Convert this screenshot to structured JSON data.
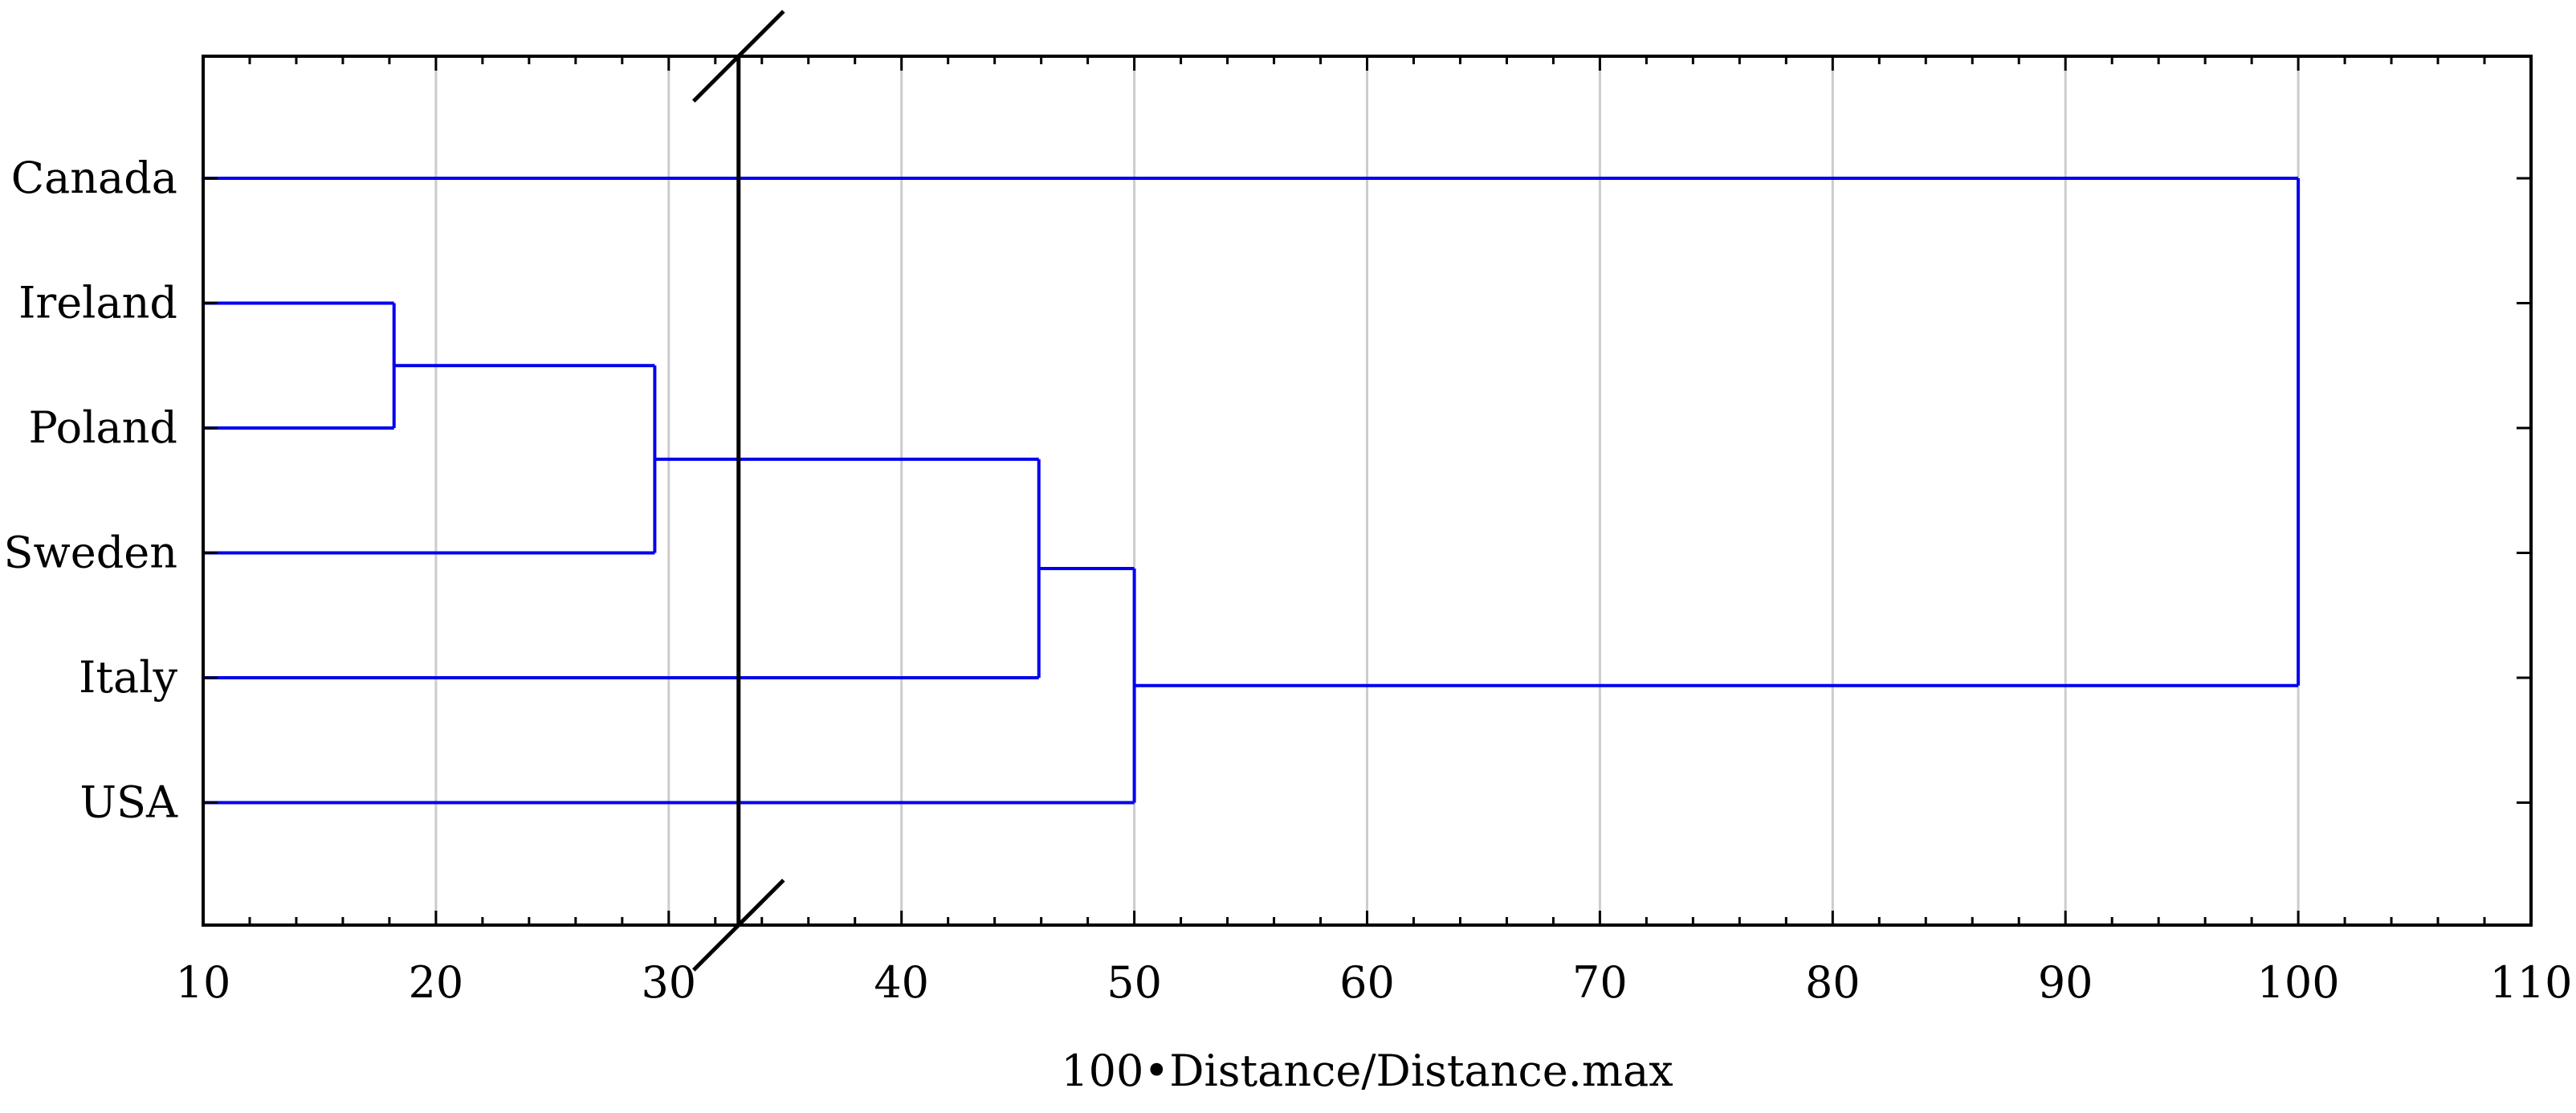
{
  "chart_data": {
    "type": "dendrogram",
    "xlabel": "100•Distance/Distance.max",
    "xlim": [
      10,
      110
    ],
    "xticks": [
      "10",
      "20",
      "30",
      "40",
      "50",
      "60",
      "70",
      "80",
      "90",
      "100",
      "110"
    ],
    "leaves": [
      "Canada",
      "Ireland",
      "Poland",
      "Sweden",
      "Italy",
      "USA"
    ],
    "merges": [
      {
        "children": [
          "Ireland",
          "Poland"
        ],
        "distance": 18.2
      },
      {
        "children": [
          "Ireland+Poland",
          "Sweden"
        ],
        "distance": 29.4
      },
      {
        "children": [
          "Ireland+Poland+Sweden",
          "Italy"
        ],
        "distance": 45.9
      },
      {
        "children": [
          "Ireland+Poland+Sweden+Italy",
          "USA"
        ],
        "distance": 50.0
      },
      {
        "children": [
          "Canada",
          "Ireland+Poland+Sweden+Italy+USA"
        ],
        "distance": 100.0
      }
    ],
    "cut_line": 33.0,
    "grid": true,
    "line_color": "#0000ee",
    "cut_color": "#000000"
  }
}
